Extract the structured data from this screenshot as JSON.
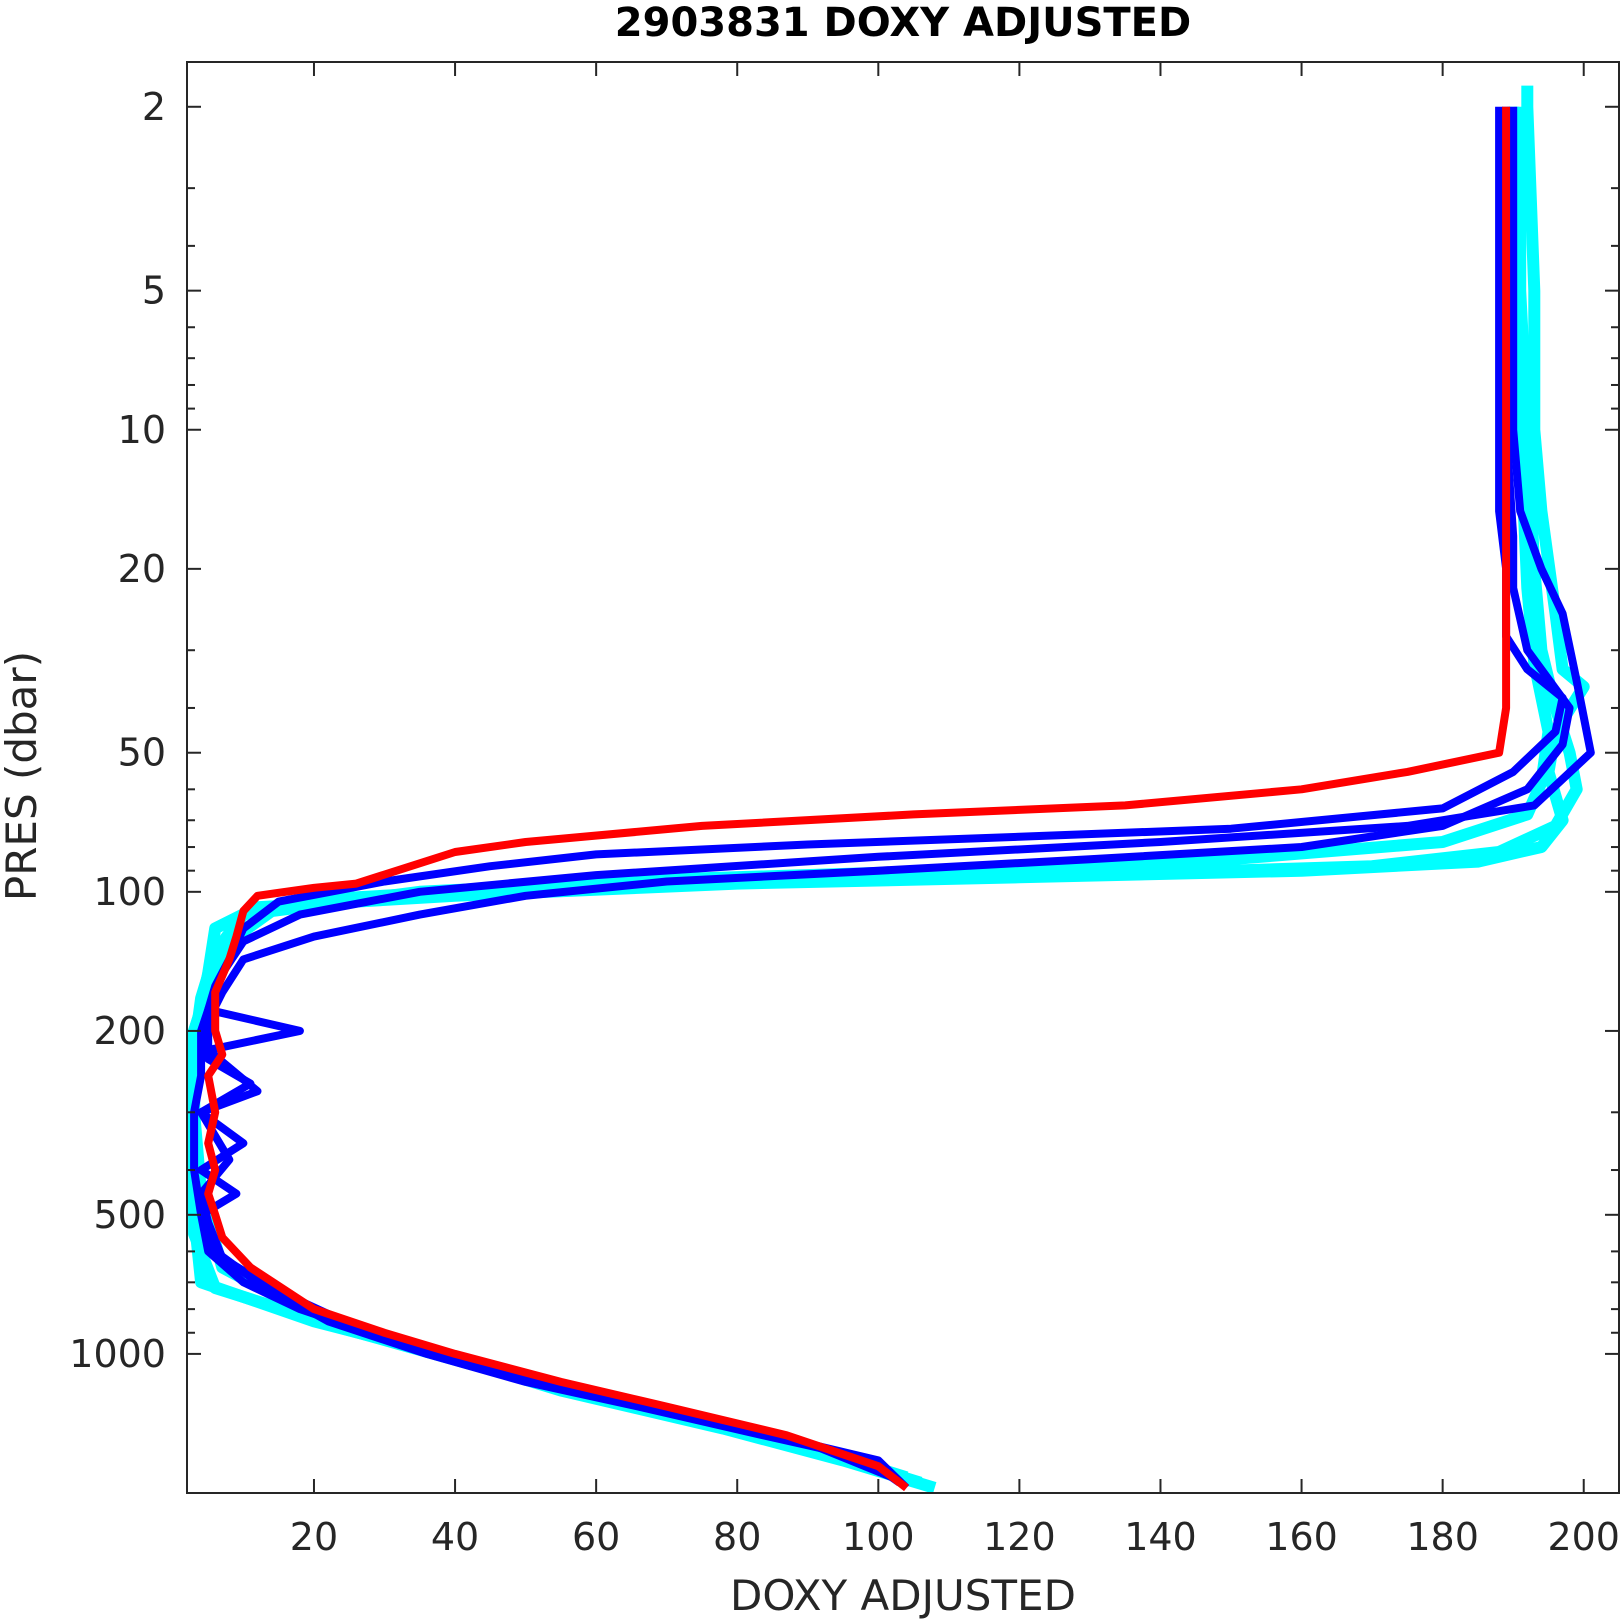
{
  "chart_data": {
    "type": "line",
    "title": "2903831  DOXY ADJUSTED",
    "xlabel": "DOXY ADJUSTED",
    "ylabel": "PRES (dbar)",
    "xlim": [
      2,
      205
    ],
    "ylim": [
      1.6,
      2000
    ],
    "y_scale": "log",
    "y_reversed": true,
    "grid": false,
    "xticks": [
      20,
      40,
      60,
      80,
      100,
      120,
      140,
      160,
      180,
      200
    ],
    "yticks": [
      2,
      5,
      10,
      20,
      50,
      100,
      200,
      500,
      1000
    ],
    "series": [
      {
        "color": "#00ffff",
        "profiles": [
          [
            [
              192,
              1.8
            ],
            [
              192,
              2
            ],
            [
              193,
              5
            ],
            [
              193,
              10
            ],
            [
              194,
              15
            ],
            [
              196,
              25
            ],
            [
              197,
              33
            ],
            [
              200,
              36
            ],
            [
              196,
              45
            ],
            [
              195,
              55
            ],
            [
              197,
              70
            ],
            [
              194,
              80
            ],
            [
              185,
              86
            ],
            [
              160,
              90
            ],
            [
              120,
              93
            ],
            [
              80,
              96
            ],
            [
              40,
              102
            ],
            [
              12,
              108
            ],
            [
              6,
              120
            ],
            [
              5,
              150
            ],
            [
              4,
              180
            ],
            [
              3,
              200
            ],
            [
              3,
              300
            ],
            [
              3,
              500
            ],
            [
              4,
              700
            ],
            [
              20,
              850
            ],
            [
              38,
              1000
            ],
            [
              55,
              1200
            ],
            [
              78,
              1450
            ],
            [
              95,
              1700
            ],
            [
              108,
              1950
            ]
          ],
          [
            [
              191,
              2
            ],
            [
              191,
              5
            ],
            [
              192,
              10
            ],
            [
              193,
              20
            ],
            [
              194,
              30
            ],
            [
              196,
              40
            ],
            [
              198,
              50
            ],
            [
              199,
              60
            ],
            [
              196,
              72
            ],
            [
              188,
              82
            ],
            [
              170,
              88
            ],
            [
              130,
              92
            ],
            [
              90,
              95
            ],
            [
              50,
              98
            ],
            [
              20,
              104
            ],
            [
              10,
              112
            ],
            [
              6,
              135
            ],
            [
              4,
              170
            ],
            [
              3,
              220
            ],
            [
              3,
              350
            ],
            [
              3,
              550
            ],
            [
              6,
              720
            ],
            [
              24,
              880
            ],
            [
              42,
              1050
            ],
            [
              62,
              1250
            ],
            [
              84,
              1500
            ],
            [
              106,
              1900
            ]
          ],
          [
            [
              190,
              2
            ],
            [
              190,
              5
            ],
            [
              191,
              10
            ],
            [
              192,
              22
            ],
            [
              193,
              32
            ],
            [
              195,
              45
            ],
            [
              194,
              58
            ],
            [
              192,
              68
            ],
            [
              180,
              78
            ],
            [
              150,
              85
            ],
            [
              110,
              90
            ],
            [
              70,
              94
            ],
            [
              35,
              100
            ],
            [
              14,
              110
            ],
            [
              8,
              128
            ],
            [
              5,
              160
            ],
            [
              3,
              200
            ],
            [
              3,
              300
            ],
            [
              4,
              450
            ],
            [
              7,
              650
            ],
            [
              22,
              860
            ],
            [
              45,
              1080
            ],
            [
              66,
              1300
            ],
            [
              88,
              1550
            ],
            [
              104,
              1850
            ]
          ]
        ]
      },
      {
        "color": "#0000ff",
        "profiles": [
          [
            [
              188,
              2
            ],
            [
              188,
              5
            ],
            [
              188,
              10
            ],
            [
              188,
              15
            ],
            [
              189,
              20
            ],
            [
              189,
              28
            ],
            [
              192,
              33
            ],
            [
              197,
              38
            ],
            [
              196,
              45
            ],
            [
              190,
              55
            ],
            [
              180,
              66
            ],
            [
              150,
              73
            ],
            [
              120,
              76
            ],
            [
              90,
              79
            ],
            [
              60,
              83
            ],
            [
              45,
              88
            ],
            [
              30,
              95
            ],
            [
              15,
              105
            ],
            [
              10,
              120
            ],
            [
              8,
              140
            ],
            [
              6,
              160
            ],
            [
              5,
              180
            ],
            [
              4,
              200
            ],
            [
              4,
              250
            ],
            [
              3,
              300
            ],
            [
              3,
              400
            ],
            [
              4,
              500
            ],
            [
              5,
              600
            ],
            [
              10,
              700
            ],
            [
              18,
              800
            ],
            [
              28,
              900
            ],
            [
              38,
              1000
            ],
            [
              52,
              1150
            ],
            [
              68,
              1300
            ],
            [
              85,
              1500
            ],
            [
              100,
              1700
            ],
            [
              104,
              1950
            ]
          ],
          [
            [
              190,
              2
            ],
            [
              190,
              5
            ],
            [
              190,
              10
            ],
            [
              191,
              15
            ],
            [
              194,
              20
            ],
            [
              197,
              25
            ],
            [
              199,
              35
            ],
            [
              201,
              50
            ],
            [
              193,
              65
            ],
            [
              175,
              72
            ],
            [
              140,
              78
            ],
            [
              100,
              84
            ],
            [
              60,
              92
            ],
            [
              35,
              100
            ],
            [
              18,
              112
            ],
            [
              10,
              128
            ],
            [
              7,
              150
            ],
            [
              5,
              180
            ],
            [
              18,
              200
            ],
            [
              5,
              220
            ],
            [
              12,
              270
            ],
            [
              4,
              300
            ],
            [
              10,
              350
            ],
            [
              4,
              400
            ],
            [
              9,
              450
            ],
            [
              4,
              500
            ],
            [
              6,
              600
            ],
            [
              12,
              700
            ],
            [
              22,
              850
            ],
            [
              36,
              1000
            ],
            [
              50,
              1150
            ],
            [
              66,
              1300
            ],
            [
              82,
              1480
            ],
            [
              98,
              1680
            ],
            [
              103,
              1900
            ]
          ],
          [
            [
              189,
              2
            ],
            [
              189,
              5
            ],
            [
              189,
              10
            ],
            [
              190,
              17
            ],
            [
              190,
              22
            ],
            [
              192,
              30
            ],
            [
              198,
              40
            ],
            [
              197,
              48
            ],
            [
              192,
              60
            ],
            [
              180,
              72
            ],
            [
              160,
              80
            ],
            [
              130,
              85
            ],
            [
              100,
              90
            ],
            [
              70,
              95
            ],
            [
              50,
              102
            ],
            [
              35,
              112
            ],
            [
              20,
              125
            ],
            [
              10,
              140
            ],
            [
              7,
              165
            ],
            [
              5,
              190
            ],
            [
              5,
              230
            ],
            [
              11,
              260
            ],
            [
              4,
              300
            ],
            [
              8,
              380
            ],
            [
              4,
              450
            ],
            [
              5,
              520
            ],
            [
              7,
              620
            ],
            [
              14,
              720
            ],
            [
              25,
              860
            ],
            [
              40,
              1020
            ],
            [
              56,
              1180
            ],
            [
              72,
              1340
            ],
            [
              90,
              1560
            ],
            [
              102,
              1850
            ]
          ]
        ]
      },
      {
        "color": "#ff0000",
        "profiles": [
          [
            [
              189,
              2
            ],
            [
              189,
              5
            ],
            [
              189,
              10
            ],
            [
              189,
              20
            ],
            [
              189,
              30
            ],
            [
              189,
              40
            ],
            [
              188,
              50
            ],
            [
              175,
              55
            ],
            [
              160,
              60
            ],
            [
              135,
              65
            ],
            [
              105,
              68
            ],
            [
              75,
              72
            ],
            [
              50,
              78
            ],
            [
              40,
              82
            ],
            [
              26,
              96
            ],
            [
              20,
              98
            ],
            [
              12,
              102
            ],
            [
              10,
              110
            ],
            [
              9,
              125
            ],
            [
              8,
              140
            ],
            [
              6,
              165
            ],
            [
              6,
              200
            ],
            [
              7,
              225
            ],
            [
              5,
              250
            ],
            [
              6,
              300
            ],
            [
              5,
              350
            ],
            [
              6,
              400
            ],
            [
              5,
              450
            ],
            [
              6,
              500
            ],
            [
              7,
              560
            ],
            [
              11,
              650
            ],
            [
              20,
              800
            ],
            [
              30,
              900
            ],
            [
              40,
              1000
            ],
            [
              55,
              1150
            ],
            [
              70,
              1300
            ],
            [
              87,
              1500
            ],
            [
              100,
              1750
            ],
            [
              104,
              1950
            ]
          ]
        ]
      }
    ]
  }
}
